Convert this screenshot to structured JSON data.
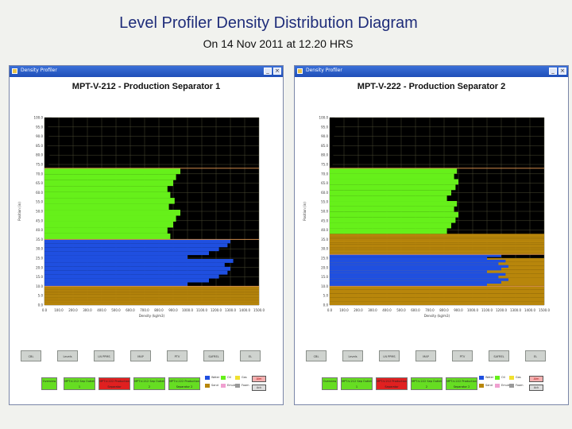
{
  "slide": {
    "title": "Level Profiler Density Distribution Diagram",
    "subtitle": "On 14 Nov 2011 at 12.20 HRS"
  },
  "colors": {
    "water": "#1f4fe0",
    "oil": "#66f01a",
    "sand": "#b8860b",
    "plot_bg": "#000000",
    "grid": "#4a4a33"
  },
  "windows": [
    {
      "app_title": "Density Profiler",
      "chart_title": "MPT-V-212 - Production Separator 1",
      "ylabel": "Position (in)",
      "xlabel": "Density (kg/m3)",
      "buttons": [
        "CBL",
        "Levels",
        "LN PPMS",
        "MAP",
        "PTV",
        "SAFREL",
        "EL"
      ],
      "controls": [
        {
          "label": "Overview",
          "color": "#66dd22"
        },
        {
          "label": "MPT-V-212 Sep Outlet 1",
          "color": "#66dd22"
        },
        {
          "label": "MPT-V-222 Production Separator",
          "color": "#e02020"
        },
        {
          "label": "MPT-V-212 Sep Outlet 2",
          "color": "#66dd22"
        },
        {
          "label": "MPT-V-222 Production Separator 2",
          "color": "#66dd22"
        }
      ],
      "legend": [
        "Water",
        "Oil",
        "Gas",
        "Sand",
        "Emulsion",
        "Foam"
      ],
      "status": [
        "Alm",
        "Ack"
      ]
    },
    {
      "app_title": "Density Profiler",
      "chart_title": "MPT-V-222 - Production Separator 2",
      "ylabel": "Position (in)",
      "xlabel": "Density (kg/m3)",
      "buttons": [
        "CBL",
        "Levels",
        "LN PPMS",
        "MAP",
        "PTV",
        "SAFREL",
        "EL"
      ],
      "controls": [
        {
          "label": "Overview",
          "color": "#66dd22"
        },
        {
          "label": "MPT-V-212 Sep Outlet 1",
          "color": "#66dd22"
        },
        {
          "label": "MPT-V-212 Production Separator",
          "color": "#e02020"
        },
        {
          "label": "MPT-V-222 Sep Outlet 2",
          "color": "#66dd22"
        },
        {
          "label": "MPT-V-222 Production Separator 2",
          "color": "#66dd22"
        }
      ],
      "legend": [
        "Water",
        "Oil",
        "Gas",
        "Sand",
        "Emulsion",
        "Foam"
      ],
      "status": [
        "Alm",
        "Ack"
      ]
    }
  ],
  "chart_data": [
    {
      "type": "bar",
      "title": "MPT-V-212 - Production Separator 1",
      "ylabel": "Position (in)",
      "xlabel": "Density (kg/m3)",
      "yticks": [
        "100.0",
        "95.0",
        "90.0",
        "85.0",
        "80.0",
        "75.0",
        "70.0",
        "65.0",
        "60.0",
        "55.0",
        "50.0",
        "45.0",
        "40.0",
        "35.0",
        "30.0",
        "25.0",
        "20.0",
        "15.0",
        "10.0",
        "5.0",
        "0.0"
      ],
      "xticks": [
        "0.0",
        "100.0",
        "200.0",
        "300.0",
        "400.0",
        "500.0",
        "600.0",
        "700.0",
        "800.0",
        "900.0",
        "1000.0",
        "1100.0",
        "1200.0",
        "1300.0",
        "1400.0",
        "1500.0"
      ],
      "xlim": [
        0,
        1500
      ],
      "ylim": [
        0,
        100
      ],
      "layers": [
        {
          "name": "Sand",
          "from": 0,
          "to": 10,
          "values": [
            1500
          ]
        },
        {
          "name": "Water",
          "from": 10,
          "to": 35,
          "values": [
            1000,
            1150,
            1220,
            1280,
            1300,
            1260,
            1320
          ]
        },
        {
          "name": "Oil",
          "from": 35,
          "to": 73,
          "values": [
            880,
            860,
            900,
            920,
            950,
            870,
            910
          ]
        },
        {
          "name": "Gas",
          "from": 73,
          "to": 100,
          "values": [
            30,
            40,
            25,
            35,
            50,
            20,
            45
          ]
        }
      ]
    },
    {
      "type": "bar",
      "title": "MPT-V-222 - Production Separator 2",
      "ylabel": "Position (in)",
      "xlabel": "Density (kg/m3)",
      "yticks": [
        "100.0",
        "95.0",
        "90.0",
        "85.0",
        "80.0",
        "75.0",
        "70.0",
        "65.0",
        "60.0",
        "55.0",
        "50.0",
        "45.0",
        "40.0",
        "35.0",
        "30.0",
        "25.0",
        "20.0",
        "15.0",
        "10.0",
        "5.0",
        "0.0"
      ],
      "xticks": [
        "0.0",
        "100.0",
        "200.0",
        "300.0",
        "400.0",
        "500.0",
        "600.0",
        "700.0",
        "800.0",
        "900.0",
        "1000.0",
        "1100.0",
        "1200.0",
        "1300.0",
        "1400.0",
        "1500.0"
      ],
      "xlim": [
        0,
        1500
      ],
      "ylim": [
        0,
        100
      ],
      "layers": [
        {
          "name": "Sand",
          "from": 0,
          "to": 25,
          "values": [
            1500
          ]
        },
        {
          "name": "Water",
          "from": 10,
          "to": 27,
          "values": [
            1100,
            1200,
            1250,
            1180,
            1230
          ]
        },
        {
          "name": "Sand",
          "from": 27,
          "to": 38,
          "values": [
            1500
          ]
        },
        {
          "name": "Oil",
          "from": 38,
          "to": 73,
          "values": [
            820,
            850,
            880,
            900,
            870,
            890
          ]
        },
        {
          "name": "Gas",
          "from": 73,
          "to": 100,
          "values": [
            20,
            35,
            30,
            25,
            40
          ]
        }
      ]
    }
  ]
}
